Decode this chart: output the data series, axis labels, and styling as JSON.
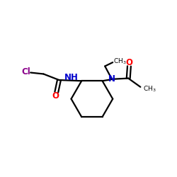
{
  "bg_color": "#ffffff",
  "atom_colors": {
    "C": "#000000",
    "N": "#0000cd",
    "O": "#ff0000",
    "Cl": "#8b008b"
  },
  "bond_color": "#000000",
  "bond_lw": 1.6,
  "font_size_label": 8.5,
  "font_size_sub": 6.5
}
